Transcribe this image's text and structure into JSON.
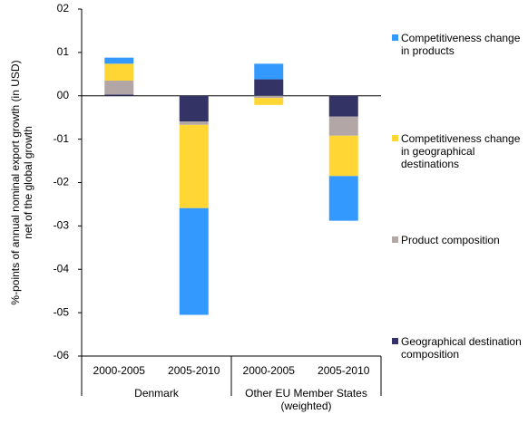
{
  "chart_data": {
    "type": "stacked_bar",
    "ylabel": [
      "%-points of annual nominal export growth (in USD)",
      "net of the global growth"
    ],
    "categories": [
      "2000-2005",
      "2005-2010",
      "2000-2005",
      "2005-2010"
    ],
    "groups": [
      "Denmark",
      "Other EU Member States (weighted)"
    ],
    "series": [
      {
        "name": "Competitiveness change in products",
        "color": "#3399ff",
        "values": [
          0.014,
          -0.246,
          0.036,
          -0.103
        ]
      },
      {
        "name": "Competitiveness change in geographical destinations",
        "color": "#ffd633",
        "values": [
          0.039,
          -0.192,
          -0.016,
          -0.093
        ]
      },
      {
        "name": "Product composition",
        "color": "#b3a6a6",
        "values": [
          0.032,
          -0.008,
          -0.005,
          -0.044
        ]
      },
      {
        "name": "Geographical destination composition",
        "color": "#333366",
        "values": [
          0.003,
          -0.059,
          0.038,
          -0.048
        ]
      }
    ],
    "ylim": [
      -0.6,
      0.2
    ],
    "yticks": [
      {
        "value": 0.2,
        "label": "02"
      },
      {
        "value": 0.1,
        "label": "01"
      },
      {
        "value": 0,
        "label": "00"
      },
      {
        "value": -0.1,
        "label": "-01"
      },
      {
        "value": -0.2,
        "label": "-02"
      },
      {
        "value": -0.3,
        "label": "-03"
      },
      {
        "value": -0.4,
        "label": "-04"
      },
      {
        "value": -0.5,
        "label": "-05"
      },
      {
        "value": -0.6,
        "label": "-06"
      }
    ]
  }
}
